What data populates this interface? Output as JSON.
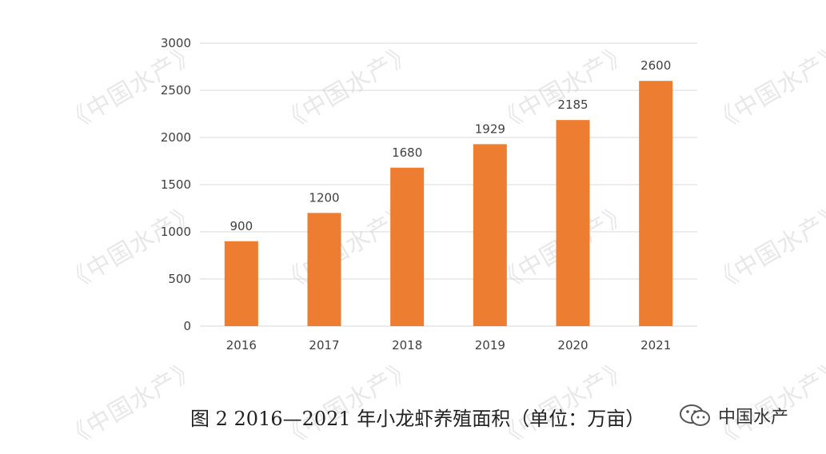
{
  "watermark_text": "《中国水产》",
  "caption": "图 2 2016—2021 年小龙虾养殖面积（单位：万亩）",
  "brand": {
    "name": "中国水产",
    "icon": "wechat-icon"
  },
  "colors": {
    "bar": "#ed7d31",
    "grid": "#d9d9d9",
    "axis_text": "#404040"
  },
  "chart_data": {
    "type": "bar",
    "title": "图 2 2016—2021 年小龙虾养殖面积（单位：万亩）",
    "categories": [
      "2016",
      "2017",
      "2018",
      "2019",
      "2020",
      "2021"
    ],
    "values": [
      900,
      1200,
      1680,
      1929,
      2185,
      2600
    ],
    "yticks": [
      0,
      500,
      1000,
      1500,
      2000,
      2500,
      3000
    ],
    "ylim": [
      0,
      3000
    ],
    "xlabel": "",
    "ylabel": "",
    "grid": true,
    "legend": "none"
  }
}
